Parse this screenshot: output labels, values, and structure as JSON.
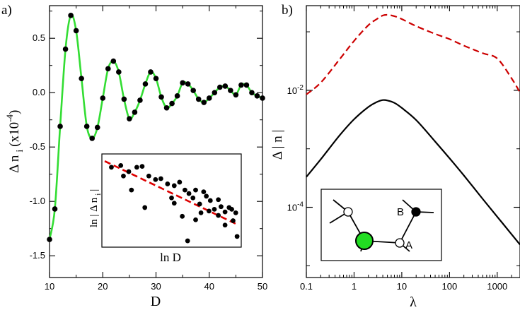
{
  "chart_data": [
    {
      "panel": "a)",
      "type": "line",
      "xlabel": "D",
      "ylabel": "Δ n",
      "ylabel_sub": "i",
      "ylabel_scale": "(x10",
      "ylabel_exp": "-4",
      "ylabel_close": ")",
      "xlim": [
        10,
        50
      ],
      "ylim": [
        -1.7,
        0.8
      ],
      "xticks": [
        10,
        20,
        30,
        40,
        50
      ],
      "xtick_labels": [
        "10",
        "20",
        "30",
        "40",
        "50"
      ],
      "yticks": [
        -1.5,
        -1.0,
        -0.5,
        0.0,
        0.5
      ],
      "ytick_labels": [
        "-1.5",
        "-1.0",
        "-0.5",
        "0.0",
        "0.5"
      ],
      "series": [
        {
          "name": "data",
          "color": "#000000",
          "x": [
            10,
            11,
            12,
            13,
            14,
            15,
            16,
            17,
            18,
            19,
            20,
            21,
            22,
            23,
            24,
            25,
            26,
            27,
            28,
            29,
            30,
            31,
            32,
            33,
            34,
            35,
            36,
            37,
            38,
            39,
            40,
            41,
            42,
            43,
            44,
            45,
            46,
            47,
            48,
            49,
            50
          ],
          "y": [
            -1.35,
            -1.07,
            -0.31,
            0.4,
            0.71,
            0.57,
            0.13,
            -0.31,
            -0.42,
            -0.32,
            -0.05,
            0.22,
            0.29,
            0.19,
            -0.06,
            -0.24,
            -0.18,
            -0.07,
            0.08,
            0.19,
            0.13,
            -0.04,
            -0.14,
            -0.1,
            -0.03,
            0.09,
            0.08,
            0.02,
            -0.06,
            -0.09,
            -0.05,
            0.0,
            0.05,
            0.06,
            0.02,
            -0.02,
            0.07,
            0.07,
            0.0,
            -0.03,
            -0.05
          ]
        },
        {
          "name": "fit",
          "color": "#33dd33"
        }
      ],
      "inset": {
        "type": "scatter",
        "xlabel": "ln D",
        "ylabel": "ln | Δ n",
        "ylabel_sub": "i",
        "ylabel_close": "|",
        "points": [
          [
            0.05,
            0.88
          ],
          [
            0.12,
            0.9
          ],
          [
            0.18,
            0.83
          ],
          [
            0.24,
            0.88
          ],
          [
            0.28,
            0.89
          ],
          [
            0.33,
            0.78
          ],
          [
            0.38,
            0.74
          ],
          [
            0.42,
            0.75
          ],
          [
            0.47,
            0.69
          ],
          [
            0.5,
            0.53
          ],
          [
            0.52,
            0.67
          ],
          [
            0.56,
            0.71
          ],
          [
            0.6,
            0.62
          ],
          [
            0.63,
            0.58
          ],
          [
            0.66,
            0.53
          ],
          [
            0.68,
            0.62
          ],
          [
            0.71,
            0.46
          ],
          [
            0.74,
            0.6
          ],
          [
            0.76,
            0.55
          ],
          [
            0.79,
            0.5
          ],
          [
            0.82,
            0.4
          ],
          [
            0.85,
            0.51
          ],
          [
            0.87,
            0.43
          ],
          [
            0.9,
            0.37
          ],
          [
            0.93,
            0.42
          ],
          [
            0.96,
            0.27
          ],
          [
            0.98,
            0.36
          ],
          [
            0.58,
            0.32
          ],
          [
            0.68,
            0.28
          ],
          [
            0.3,
            0.42
          ],
          [
            0.72,
            0.36
          ],
          [
            0.78,
            0.38
          ],
          [
            0.85,
            0.33
          ],
          [
            0.9,
            0.22
          ],
          [
            0.95,
            0.4
          ],
          [
            0.62,
            0.04
          ],
          [
            0.99,
            0.09
          ],
          [
            0.2,
            0.62
          ],
          [
            0.14,
            0.78
          ],
          [
            0.52,
            0.47
          ]
        ],
        "fit": {
          "color": "#dd0000",
          "start": [
            0.0,
            0.95
          ],
          "end": [
            1.0,
            0.22
          ]
        }
      }
    },
    {
      "panel": "b)",
      "type": "line",
      "xlabel": "λ",
      "ylabel": "Δ | n |",
      "xscale": "log",
      "yscale": "log",
      "xlim": [
        0.1,
        3000
      ],
      "ylim": [
        6.3e-06,
        0.28
      ],
      "xticks": [
        0.1,
        1,
        10,
        100,
        1000
      ],
      "xtick_labels": [
        "0.1",
        "1",
        "10",
        "100",
        "1000"
      ],
      "ytick_base": "10",
      "yticks": [
        0.0001,
        0.01
      ],
      "ytick_exps": [
        "-4",
        "-2"
      ],
      "series": [
        {
          "name": "solid",
          "color": "#000000",
          "x": [
            0.1,
            0.2,
            0.5,
            1,
            2,
            3,
            4,
            5,
            7,
            10,
            20,
            50,
            100,
            200,
            500,
            1000,
            2000,
            3000
          ],
          "y": [
            0.00033,
            0.00066,
            0.0017,
            0.0032,
            0.0052,
            0.0063,
            0.0068,
            0.0067,
            0.0061,
            0.005,
            0.0031,
            0.00133,
            0.00069,
            0.00035,
            0.000138,
            6.9e-05,
            3.45e-05,
            2.3e-05
          ]
        },
        {
          "name": "dashed",
          "color": "#cc0000",
          "x": [
            0.1,
            0.2,
            0.5,
            1,
            2,
            3,
            4,
            5,
            7,
            10,
            20,
            50,
            100,
            200,
            500,
            1000,
            2000,
            3000
          ],
          "y": [
            0.0085,
            0.0135,
            0.034,
            0.07,
            0.13,
            0.165,
            0.19,
            0.195,
            0.185,
            0.165,
            0.125,
            0.092,
            0.075,
            0.058,
            0.043,
            0.035,
            0.016,
            0.0092
          ]
        }
      ],
      "inset_labels": {
        "b": "B",
        "a": "A"
      }
    }
  ]
}
